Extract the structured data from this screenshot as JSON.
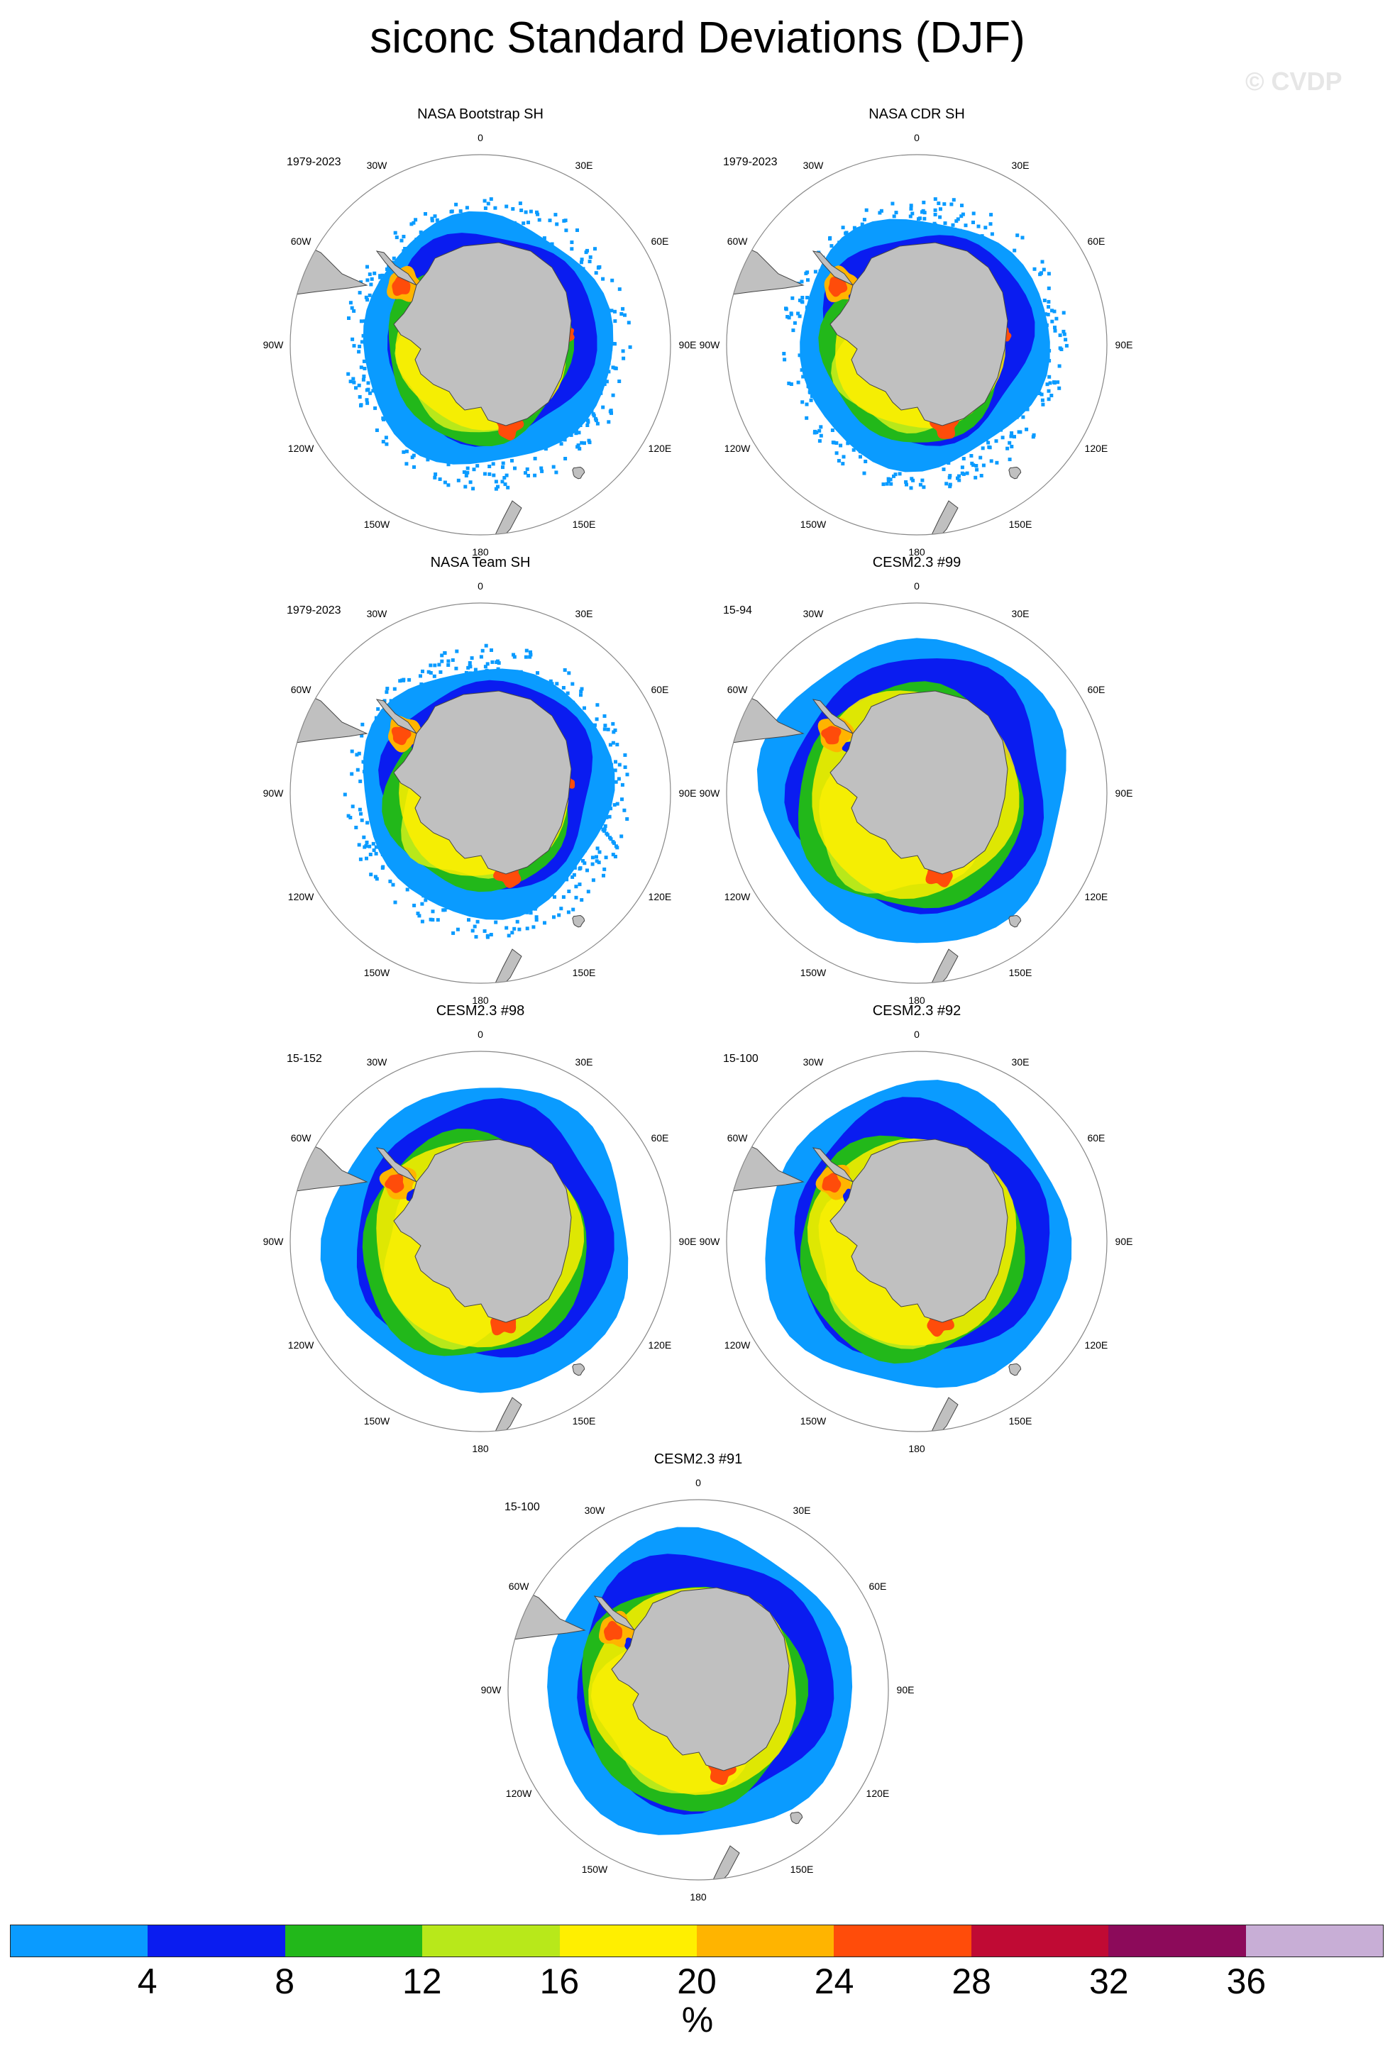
{
  "title": "siconc Standard Deviations (DJF)",
  "watermark": "© CVDP",
  "longitude_labels": [
    "0",
    "30E",
    "60E",
    "90E",
    "120E",
    "150E",
    "180",
    "150W",
    "120W",
    "90W",
    "60W",
    "30W"
  ],
  "panels": [
    {
      "title": "NASA Bootstrap SH",
      "period": "1979-2023",
      "type": "obs"
    },
    {
      "title": "NASA CDR SH",
      "period": "1979-2023",
      "type": "obs"
    },
    {
      "title": "NASA Team SH",
      "period": "1979-2023",
      "type": "obs"
    },
    {
      "title": "CESM2.3 #99",
      "period": "15-94",
      "type": "model"
    },
    {
      "title": "CESM2.3 #98",
      "period": "15-152",
      "type": "model"
    },
    {
      "title": "CESM2.3 #92",
      "period": "15-100",
      "type": "model"
    },
    {
      "title": "CESM2.3 #91",
      "period": "15-100",
      "type": "model"
    }
  ],
  "colorbar": {
    "unit": "%",
    "ticks": [
      "4",
      "8",
      "12",
      "16",
      "20",
      "24",
      "28",
      "32",
      "36"
    ],
    "colors": [
      "#0a9bff",
      "#0a1cf0",
      "#22b81a",
      "#b8e81a",
      "#ffef00",
      "#ffb400",
      "#ff4c0a",
      "#c00a34",
      "#8c0a5a",
      "#c8aed6"
    ]
  },
  "colors": {
    "land": "#c0c0c0",
    "coastline": "#444444",
    "circle": "#888888"
  }
}
